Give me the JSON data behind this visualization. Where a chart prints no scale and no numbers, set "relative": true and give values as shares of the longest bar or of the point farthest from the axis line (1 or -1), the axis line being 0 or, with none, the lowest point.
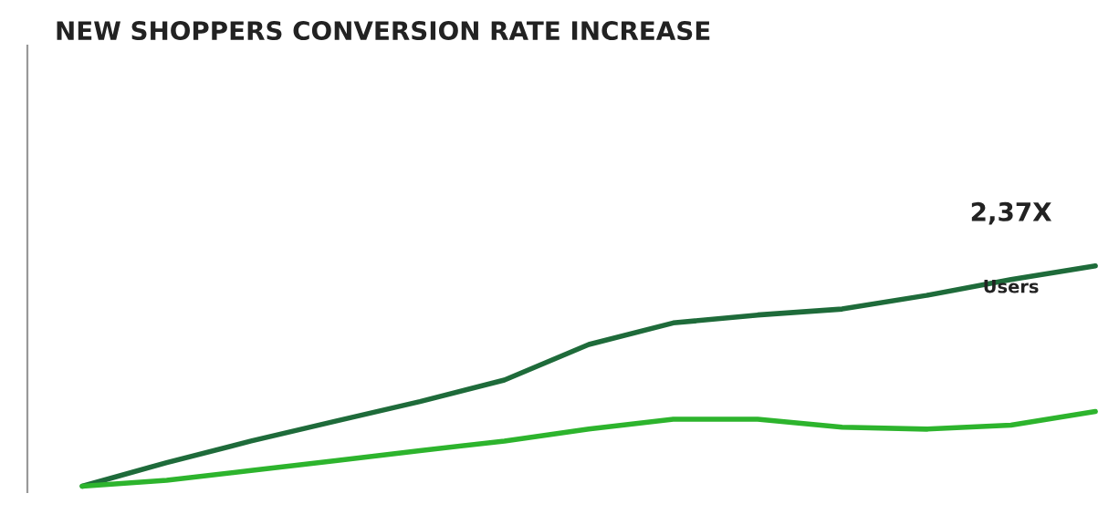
{
  "chart_data": {
    "type": "line",
    "title": "NEW SHOPPERS CONVERSION RATE INCREASE",
    "relative": true,
    "categories": [
      null,
      null,
      null,
      null,
      null,
      null,
      null,
      null,
      null,
      null,
      null,
      null,
      null
    ],
    "series": [
      {
        "name": "Users",
        "color": "#1e6b3a",
        "values": [
          0,
          0.107,
          0.205,
          0.295,
          0.384,
          0.482,
          0.643,
          0.741,
          0.777,
          0.804,
          0.866,
          0.938,
          1.0
        ]
      },
      {
        "color": "#2db42d",
        "values": [
          0,
          0.027,
          0.071,
          0.116,
          0.161,
          0.205,
          0.259,
          0.304,
          0.304,
          0.268,
          0.259,
          0.277,
          0.339
        ]
      }
    ],
    "annotations": [
      "2,37X"
    ],
    "grid": false,
    "legend": false
  }
}
